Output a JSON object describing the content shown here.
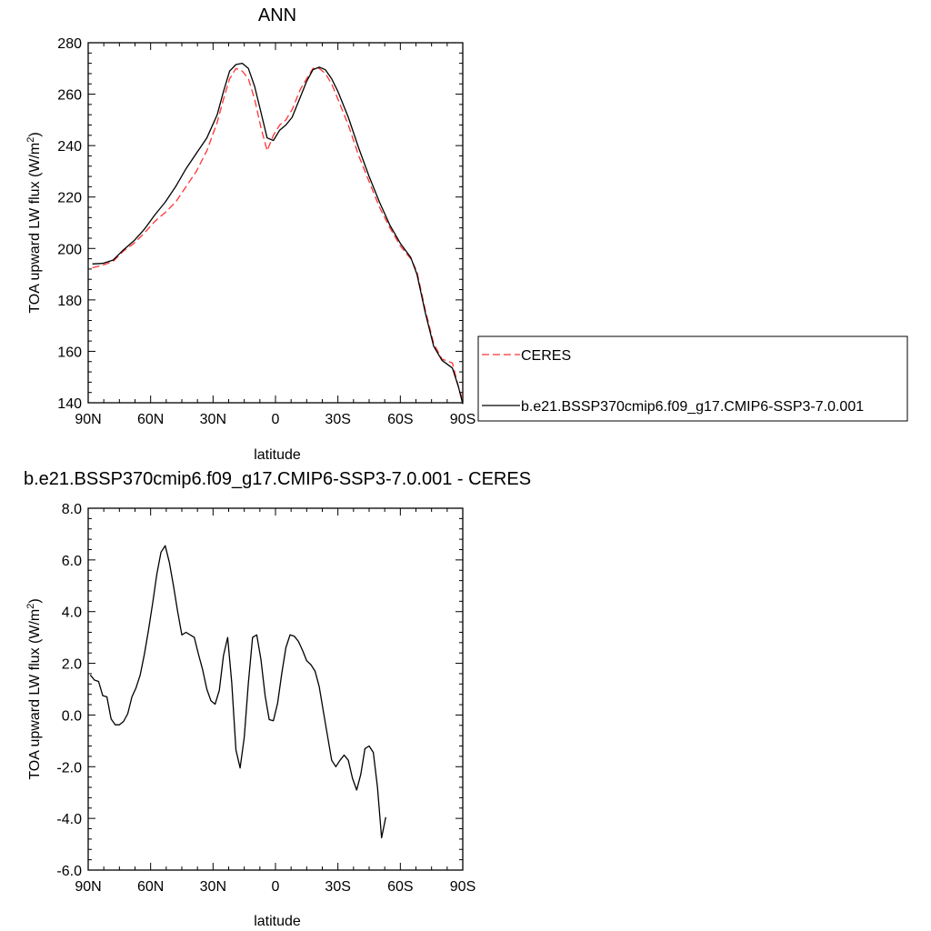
{
  "chart_data": [
    {
      "type": "line",
      "title": "ANN",
      "xlabel": "latitude",
      "ylabel": "TOA upward LW flux (W/m",
      "ylabel_sup": "2",
      "ylabel_close": ")",
      "xlim": [
        90,
        -90
      ],
      "ylim": [
        140,
        280
      ],
      "xticks": [
        {
          "value": 90,
          "label": "90N"
        },
        {
          "value": 60,
          "label": "60N"
        },
        {
          "value": 30,
          "label": "30N"
        },
        {
          "value": 0,
          "label": "0"
        },
        {
          "value": -30,
          "label": "30S"
        },
        {
          "value": -60,
          "label": "60S"
        },
        {
          "value": -90,
          "label": "90S"
        }
      ],
      "yticks": [
        {
          "value": 140,
          "label": "140"
        },
        {
          "value": 160,
          "label": "160"
        },
        {
          "value": 180,
          "label": "180"
        },
        {
          "value": 200,
          "label": "200"
        },
        {
          "value": 220,
          "label": "220"
        },
        {
          "value": 240,
          "label": "240"
        },
        {
          "value": 260,
          "label": "260"
        },
        {
          "value": 280,
          "label": "280"
        }
      ],
      "legend_position": "right",
      "series": [
        {
          "name": "CERES",
          "color": "#ff3333",
          "dash": true,
          "points": [
            [
              88,
              192.5
            ],
            [
              83,
              193.5
            ],
            [
              78,
              195
            ],
            [
              73,
              199
            ],
            [
              68,
              202
            ],
            [
              63,
              206
            ],
            [
              58,
              210.5
            ],
            [
              53,
              214
            ],
            [
              48,
              218
            ],
            [
              43,
              224
            ],
            [
              38,
              230
            ],
            [
              33,
              238
            ],
            [
              28,
              249
            ],
            [
              25,
              258
            ],
            [
              22,
              266
            ],
            [
              19,
              270
            ],
            [
              16,
              269
            ],
            [
              13,
              266
            ],
            [
              10,
              258
            ],
            [
              7,
              247
            ],
            [
              4,
              238
            ],
            [
              1,
              244
            ],
            [
              -2,
              248
            ],
            [
              -5,
              250
            ],
            [
              -8,
              254
            ],
            [
              -12,
              262
            ],
            [
              -15,
              266
            ],
            [
              -18,
              270
            ],
            [
              -21,
              270
            ],
            [
              -24,
              268
            ],
            [
              -27,
              264
            ],
            [
              -30,
              258
            ],
            [
              -35,
              248
            ],
            [
              -40,
              236
            ],
            [
              -45,
              226
            ],
            [
              -50,
              216
            ],
            [
              -55,
              208
            ],
            [
              -60,
              201
            ],
            [
              -65,
              196
            ],
            [
              -68,
              191
            ],
            [
              -72,
              176
            ],
            [
              -76,
              163
            ],
            [
              -80,
              157
            ],
            [
              -85,
              155.5
            ],
            [
              -88,
              146
            ],
            [
              -90,
              141
            ]
          ]
        },
        {
          "name": "b.e21.BSSP370cmip6.f09_g17.CMIP6-SSP3-7.0.001",
          "color": "#000000",
          "dash": false,
          "points": [
            [
              88,
              194
            ],
            [
              83,
              194.2
            ],
            [
              78,
              195.5
            ],
            [
              73,
              199.5
            ],
            [
              68,
              203
            ],
            [
              63,
              207.5
            ],
            [
              58,
              213
            ],
            [
              53,
              218
            ],
            [
              48,
              224
            ],
            [
              43,
              231
            ],
            [
              38,
              237
            ],
            [
              33,
              243
            ],
            [
              28,
              252
            ],
            [
              25,
              261
            ],
            [
              22,
              269
            ],
            [
              19,
              271.5
            ],
            [
              16,
              272
            ],
            [
              13,
              270
            ],
            [
              10,
              263
            ],
            [
              7,
              253
            ],
            [
              4,
              243
            ],
            [
              1,
              242
            ],
            [
              -2,
              246
            ],
            [
              -5,
              248
            ],
            [
              -8,
              251
            ],
            [
              -12,
              259
            ],
            [
              -15,
              265
            ],
            [
              -18,
              269.5
            ],
            [
              -21,
              270.5
            ],
            [
              -24,
              269.5
            ],
            [
              -27,
              266
            ],
            [
              -30,
              261
            ],
            [
              -35,
              251
            ],
            [
              -40,
              239
            ],
            [
              -45,
              228
            ],
            [
              -50,
              218
            ],
            [
              -55,
              209
            ],
            [
              -60,
              202
            ],
            [
              -65,
              196.5
            ],
            [
              -68,
              190
            ],
            [
              -72,
              175
            ],
            [
              -76,
              162
            ],
            [
              -80,
              156.5
            ],
            [
              -85,
              153.5
            ],
            [
              -88,
              146
            ],
            [
              -90,
              139.5
            ]
          ]
        }
      ]
    },
    {
      "type": "line",
      "title": "b.e21.BSSP370cmip6.f09_g17.CMIP6-SSP3-7.0.001 - CERES",
      "xlabel": "latitude",
      "ylabel": "TOA upward LW flux (W/m",
      "ylabel_sup": "2",
      "ylabel_close": ")",
      "xlim": [
        90,
        -90
      ],
      "ylim": [
        -6,
        8
      ],
      "xticks": [
        {
          "value": 90,
          "label": "90N"
        },
        {
          "value": 60,
          "label": "60N"
        },
        {
          "value": 30,
          "label": "30N"
        },
        {
          "value": 0,
          "label": "0"
        },
        {
          "value": -30,
          "label": "30S"
        },
        {
          "value": -60,
          "label": "60S"
        },
        {
          "value": -90,
          "label": "90S"
        }
      ],
      "yticks": [
        {
          "value": -6,
          "label": "-6.0"
        },
        {
          "value": -4,
          "label": "-4.0"
        },
        {
          "value": -2,
          "label": "-2.0"
        },
        {
          "value": 0,
          "label": "0.0"
        },
        {
          "value": 2,
          "label": "2.0"
        },
        {
          "value": 4,
          "label": "4.0"
        },
        {
          "value": 6,
          "label": "6.0"
        },
        {
          "value": 8,
          "label": "8.0"
        }
      ],
      "series": [
        {
          "name": "",
          "color": "#000000",
          "dash": false,
          "points": [
            [
              89,
              1.55
            ],
            [
              87,
              1.35
            ],
            [
              85,
              1.3
            ],
            [
              83,
              0.75
            ],
            [
              81,
              0.7
            ],
            [
              79,
              -0.15
            ],
            [
              77,
              -0.38
            ],
            [
              75,
              -0.38
            ],
            [
              73,
              -0.25
            ],
            [
              71,
              0.05
            ],
            [
              69,
              0.7
            ],
            [
              67,
              1.05
            ],
            [
              65,
              1.55
            ],
            [
              63,
              2.35
            ],
            [
              61,
              3.3
            ],
            [
              59,
              4.35
            ],
            [
              57,
              5.45
            ],
            [
              55,
              6.3
            ],
            [
              53,
              6.55
            ],
            [
              51,
              5.9
            ],
            [
              49,
              5.0
            ],
            [
              47,
              4.0
            ],
            [
              45,
              3.1
            ],
            [
              43,
              3.2
            ],
            [
              39,
              3.0
            ],
            [
              37,
              2.35
            ],
            [
              35,
              1.75
            ],
            [
              33,
              1.0
            ],
            [
              31,
              0.55
            ],
            [
              29,
              0.42
            ],
            [
              27,
              0.95
            ],
            [
              25,
              2.3
            ],
            [
              23,
              3.0
            ],
            [
              21,
              1.25
            ],
            [
              19,
              -1.35
            ],
            [
              17,
              -2.05
            ],
            [
              15,
              -0.85
            ],
            [
              13,
              1.25
            ],
            [
              11,
              3.0
            ],
            [
              9,
              3.1
            ],
            [
              7,
              2.15
            ],
            [
              5,
              0.75
            ],
            [
              3,
              -0.18
            ],
            [
              1,
              -0.22
            ],
            [
              -1,
              0.45
            ],
            [
              -3,
              1.6
            ],
            [
              -5,
              2.6
            ],
            [
              -7,
              3.1
            ],
            [
              -9,
              3.05
            ],
            [
              -11,
              2.85
            ],
            [
              -13,
              2.5
            ],
            [
              -15,
              2.1
            ],
            [
              -17,
              1.95
            ],
            [
              -19,
              1.7
            ],
            [
              -21,
              1.1
            ],
            [
              -23,
              0.15
            ],
            [
              -25,
              -0.8
            ],
            [
              -27,
              -1.75
            ],
            [
              -29,
              -2.0
            ],
            [
              -31,
              -1.75
            ],
            [
              -33,
              -1.55
            ],
            [
              -35,
              -1.75
            ],
            [
              -37,
              -2.45
            ],
            [
              -39,
              -2.9
            ],
            [
              -41,
              -2.3
            ],
            [
              -43,
              -1.3
            ],
            [
              -45,
              -1.2
            ],
            [
              -47,
              -1.45
            ],
            [
              -49,
              -2.8
            ],
            [
              -51,
              -4.75
            ],
            [
              -53,
              -3.95
            ]
          ]
        }
      ]
    }
  ]
}
